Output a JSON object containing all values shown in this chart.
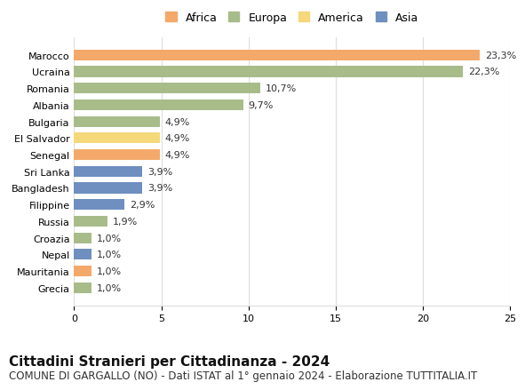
{
  "categories": [
    "Marocco",
    "Ucraina",
    "Romania",
    "Albania",
    "Bulgaria",
    "El Salvador",
    "Senegal",
    "Sri Lanka",
    "Bangladesh",
    "Filippine",
    "Russia",
    "Croazia",
    "Nepal",
    "Mauritania",
    "Grecia"
  ],
  "values": [
    23.3,
    22.3,
    10.7,
    9.7,
    4.9,
    4.9,
    4.9,
    3.9,
    3.9,
    2.9,
    1.9,
    1.0,
    1.0,
    1.0,
    1.0
  ],
  "labels": [
    "23,3%",
    "22,3%",
    "10,7%",
    "9,7%",
    "4,9%",
    "4,9%",
    "4,9%",
    "3,9%",
    "3,9%",
    "2,9%",
    "1,9%",
    "1,0%",
    "1,0%",
    "1,0%",
    "1,0%"
  ],
  "continents": [
    "Africa",
    "Europa",
    "Europa",
    "Europa",
    "Europa",
    "America",
    "Africa",
    "Asia",
    "Asia",
    "Asia",
    "Europa",
    "Europa",
    "Asia",
    "Africa",
    "Europa"
  ],
  "colors": {
    "Africa": "#F4A96A",
    "Europa": "#A8BC8A",
    "America": "#F5D87A",
    "Asia": "#6E8FBF"
  },
  "legend_order": [
    "Africa",
    "Europa",
    "America",
    "Asia"
  ],
  "title": "Cittadini Stranieri per Cittadinanza - 2024",
  "subtitle": "COMUNE DI GARGALLO (NO) - Dati ISTAT al 1° gennaio 2024 - Elaborazione TUTTITALIA.IT",
  "xlim": [
    0,
    25
  ],
  "xticks": [
    0,
    5,
    10,
    15,
    20,
    25
  ],
  "background_color": "#ffffff",
  "grid_color": "#dddddd",
  "title_fontsize": 11,
  "subtitle_fontsize": 8.5,
  "label_fontsize": 8,
  "tick_fontsize": 8
}
